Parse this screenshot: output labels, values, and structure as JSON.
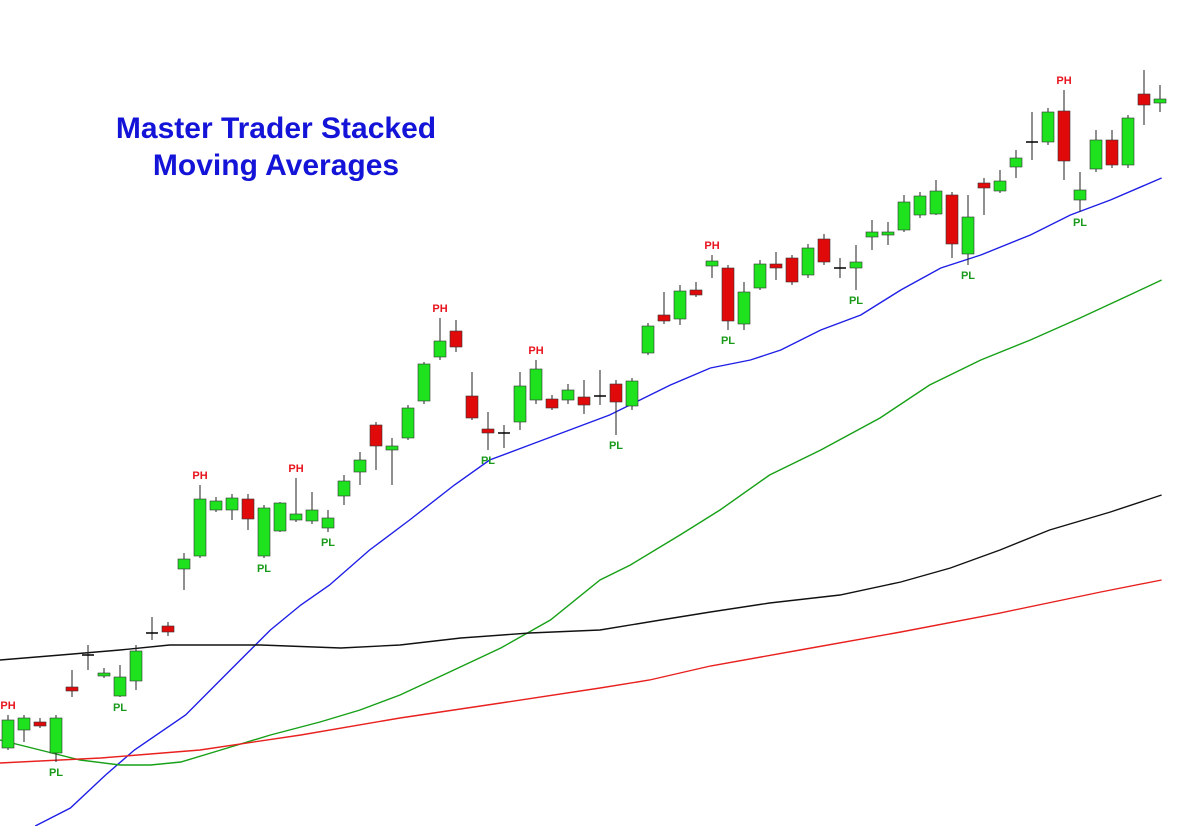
{
  "chart_data": {
    "type": "candlestick",
    "title": [
      "Master Trader Stacked",
      "Moving Averages"
    ],
    "xlim": [
      -0.5,
      72.5
    ],
    "ylim": [
      0,
      826
    ],
    "up_color": "#1ee21e",
    "down_color": "#e00a0a",
    "doji_color": "#000000",
    "candles": {
      "open": [
        78,
        96,
        104,
        73,
        139,
        171,
        150,
        130,
        145,
        193,
        200,
        257,
        270,
        316,
        316,
        327,
        270,
        295,
        306,
        305,
        298,
        330,
        354,
        401,
        376,
        388,
        425,
        469,
        495,
        430,
        397,
        393,
        404,
        426,
        427,
        426,
        429,
        430,
        442,
        420,
        473,
        511,
        507,
        536,
        560,
        558,
        502,
        538,
        562,
        568,
        551,
        587,
        558,
        558,
        589,
        591,
        596,
        611,
        612,
        631,
        572,
        643,
        635,
        659,
        684,
        684,
        715,
        626,
        657,
        686,
        661,
        732,
        723
      ],
      "high": [
        111,
        111,
        108,
        111,
        156,
        181,
        158,
        161,
        181,
        209,
        204,
        273,
        341,
        329,
        332,
        332,
        321,
        324,
        348,
        334,
        316,
        351,
        374,
        404,
        388,
        421,
        464,
        508,
        506,
        454,
        414,
        401,
        454,
        466,
        431,
        442,
        446,
        456,
        446,
        448,
        503,
        534,
        541,
        544,
        571,
        561,
        544,
        566,
        574,
        571,
        582,
        592,
        568,
        581,
        606,
        604,
        631,
        634,
        646,
        634,
        631,
        648,
        656,
        676,
        714,
        718,
        736,
        654,
        696,
        696,
        711,
        756,
        741
      ],
      "low": [
        76,
        84,
        98,
        64,
        129,
        156,
        148,
        129,
        136,
        186,
        190,
        236,
        268,
        314,
        306,
        296,
        268,
        294,
        304,
        302,
        294,
        321,
        341,
        356,
        341,
        386,
        422,
        466,
        474,
        406,
        376,
        378,
        396,
        422,
        416,
        422,
        412,
        421,
        391,
        416,
        471,
        502,
        501,
        529,
        548,
        496,
        496,
        536,
        546,
        541,
        548,
        561,
        548,
        536,
        576,
        581,
        594,
        608,
        611,
        568,
        561,
        611,
        633,
        648,
        666,
        681,
        646,
        614,
        654,
        658,
        658,
        701,
        714
      ],
      "close": [
        106,
        108,
        100,
        108,
        135,
        171,
        153,
        149,
        175,
        193,
        194,
        267,
        327,
        325,
        328,
        307,
        318,
        323,
        312,
        316,
        308,
        345,
        366,
        380,
        380,
        418,
        462,
        485,
        479,
        408,
        393,
        393,
        440,
        457,
        418,
        436,
        421,
        430,
        424,
        445,
        500,
        505,
        535,
        531,
        565,
        505,
        534,
        562,
        558,
        544,
        578,
        564,
        558,
        564,
        594,
        594,
        624,
        630,
        635,
        582,
        609,
        638,
        645,
        668,
        684,
        714,
        665,
        636,
        686,
        661,
        708,
        721,
        727
      ]
    },
    "series": [
      {
        "color": "#1f1fe6",
        "x": [
          1.7,
          3.9,
          6.1,
          7.9,
          11.1,
          13.9,
          16.4,
          18.3,
          20.1,
          22.6,
          25.1,
          27.9,
          30.1,
          32.6,
          35.1,
          37.6,
          39.5,
          41.4,
          43.9,
          46.4,
          48.3,
          50.8,
          53.3,
          55.8,
          58.3,
          60.8,
          63.9,
          66.4,
          68.9,
          72.1
        ],
        "values": [
          0,
          18,
          51,
          76,
          111,
          156,
          196,
          221,
          241,
          276,
          306,
          341,
          366,
          381,
          396,
          411,
          426,
          441,
          458,
          466,
          476,
          496,
          511,
          536,
          558,
          571,
          591,
          611,
          626,
          648
        ]
      },
      {
        "color": "#16a016",
        "x": [
          -0.5,
          2,
          4.5,
          7,
          8.9,
          10.8,
          13.3,
          16.4,
          19.5,
          22,
          24.5,
          27.6,
          30.8,
          33.9,
          37,
          38.9,
          42,
          44.5,
          47.6,
          50.8,
          54.5,
          57.6,
          60.8,
          63.9,
          67,
          70.1,
          72.1
        ],
        "values": [
          86,
          76,
          66,
          61,
          61,
          64,
          76,
          91,
          104,
          116,
          131,
          154,
          178,
          206,
          246,
          261,
          291,
          316,
          351,
          376,
          408,
          441,
          466,
          486,
          508,
          531,
          546
        ]
      },
      {
        "color": "#111111",
        "x": [
          -0.5,
          3.3,
          7,
          10.1,
          15.8,
          20.8,
          24.5,
          28.3,
          32.6,
          37,
          40.8,
          43.9,
          47.6,
          52,
          55.8,
          58.9,
          62,
          65.1,
          68.9,
          72.1
        ],
        "values": [
          166,
          171,
          176,
          181,
          181,
          178,
          181,
          188,
          193,
          196,
          206,
          214,
          223,
          231,
          244,
          258,
          276,
          296,
          314,
          331
        ]
      },
      {
        "color": "#e8201e",
        "x": [
          -0.5,
          5.8,
          12,
          18.3,
          24.5,
          30.8,
          37,
          40.1,
          43.9,
          49.5,
          55.8,
          62,
          68.3,
          72.1
        ],
        "values": [
          63,
          68,
          76,
          91,
          108,
          123,
          138,
          146,
          160,
          176,
          194,
          213,
          234,
          246
        ]
      }
    ],
    "pivot_high": {
      "label": "PH",
      "color": "#e8141e",
      "candles": [
        0,
        12,
        18,
        27,
        33,
        44,
        66
      ]
    },
    "pivot_low": {
      "label": "PL",
      "color": "#1a9a1a",
      "candles": [
        3,
        7,
        16,
        20,
        30,
        38,
        45,
        53,
        60,
        67
      ]
    }
  }
}
